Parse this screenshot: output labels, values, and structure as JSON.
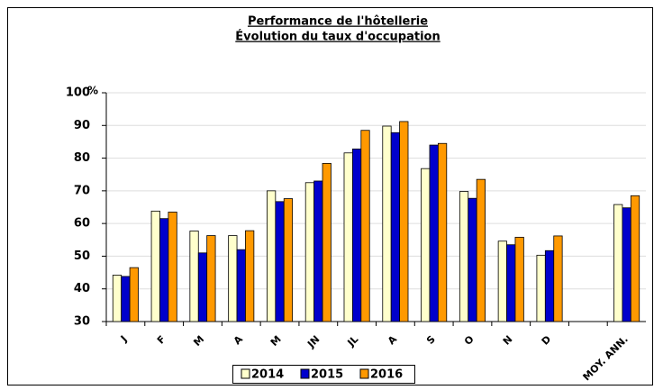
{
  "chart_data": {
    "type": "bar",
    "title": "Performance de l'hôtellerie",
    "subtitle": "Évolution du taux d'occupation",
    "y_label": "%",
    "categories": [
      "J",
      "F",
      "M",
      "A",
      "M",
      "JN",
      "JL",
      "A",
      "S",
      "O",
      "N",
      "D",
      null,
      "MOY. ANN."
    ],
    "series": [
      {
        "name": "2014",
        "color": "#ffffcc",
        "values": [
          44.2,
          63.8,
          57.7,
          56.3,
          70,
          72.5,
          81.6,
          89.8,
          76.8,
          69.8,
          54.6,
          50.3,
          null,
          65.8
        ]
      },
      {
        "name": "2015",
        "color": "#0000cc",
        "values": [
          43.8,
          61.5,
          51,
          52,
          66.7,
          73,
          82.8,
          87.8,
          84,
          67.7,
          53.5,
          51.7,
          null,
          64.8
        ]
      },
      {
        "name": "2016",
        "color": "#ff9900",
        "values": [
          46.5,
          63.5,
          56.3,
          57.8,
          67.6,
          78.4,
          88.5,
          91.2,
          84.5,
          73.5,
          55.8,
          56.2,
          null,
          68.5
        ]
      }
    ],
    "ylim": [
      30,
      100
    ],
    "yticks": [
      30,
      40,
      50,
      60,
      70,
      80,
      90,
      100
    ],
    "grid": true,
    "legend": "bottom"
  }
}
